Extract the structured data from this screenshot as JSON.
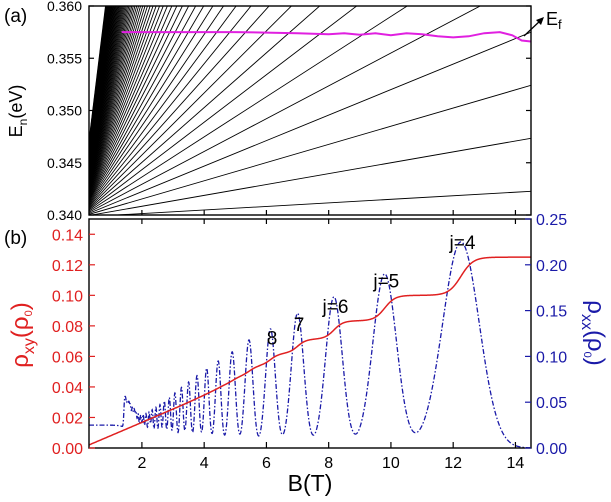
{
  "chart_data": [
    {
      "panel": "(a)",
      "type": "line",
      "ylabel_main": "E",
      "ylabel_sub": "n",
      "ylabel_unit": "(eV)",
      "xlim": [
        0.3,
        14.5
      ],
      "ylim": [
        0.34,
        0.36
      ],
      "yticks": [
        0.34,
        0.345,
        0.35,
        0.355,
        0.36
      ],
      "ytick_labels": [
        "0.340",
        "0.345",
        "0.350",
        "0.355",
        "0.360"
      ],
      "landau_levels": {
        "description": "fan of Landau levels E_n(B) = E0 + s*B",
        "color": "#000000",
        "E0": 0.3398,
        "slopes": [
          0.00017,
          0.00052,
          0.00087,
          0.00122,
          0.00157,
          0.00192,
          0.00227,
          0.00262,
          0.00297,
          0.00332,
          0.00367,
          0.00402,
          0.00437,
          0.00472,
          0.00507,
          0.00542,
          0.00577,
          0.00612,
          0.00647,
          0.00682,
          0.00717,
          0.00752,
          0.00787,
          0.00822,
          0.00857,
          0.00892,
          0.00927,
          0.00962,
          0.00997,
          0.01032,
          0.01067,
          0.01102,
          0.01137,
          0.01172,
          0.01207,
          0.01242,
          0.01277,
          0.01312,
          0.01347,
          0.01382,
          0.01417,
          0.01452,
          0.01487,
          0.01522,
          0.01557,
          0.01592,
          0.01627,
          0.01662,
          0.01697,
          0.01732,
          0.01767,
          0.01802,
          0.01837,
          0.01872,
          0.01907,
          0.01942,
          0.01977,
          0.02012,
          0.02047,
          0.02082,
          0.02117,
          0.02152,
          0.02187,
          0.02222,
          0.02257,
          0.02292,
          0.02327,
          0.02362,
          0.02397,
          0.02432
        ]
      },
      "fermi_level": {
        "label_main": "E",
        "label_sub": "f",
        "color": "#e020e0",
        "x": [
          1.35,
          2,
          3,
          4,
          5,
          6,
          7,
          7.5,
          8,
          8.5,
          9,
          9.5,
          10,
          10.5,
          11,
          11.5,
          12,
          12.5,
          13,
          13.5,
          13.9,
          14.2,
          14.5
        ],
        "y": [
          0.3575,
          0.3575,
          0.3575,
          0.3575,
          0.3575,
          0.35745,
          0.3574,
          0.35735,
          0.3573,
          0.3574,
          0.35725,
          0.3574,
          0.3572,
          0.3574,
          0.3573,
          0.3571,
          0.357,
          0.3571,
          0.3574,
          0.3575,
          0.3572,
          0.3567,
          0.3566
        ]
      }
    },
    {
      "panel": "(b)",
      "type": "line",
      "xlabel": "B(T)",
      "xlim": [
        0.3,
        14.5
      ],
      "xticks": [
        2,
        4,
        6,
        8,
        10,
        12,
        14
      ],
      "xtick_labels": [
        "2",
        "4",
        "6",
        "8",
        "10",
        "12",
        "14"
      ],
      "left_axis": {
        "label_main": "ρ",
        "label_sub": "xy",
        "label_tail": "(ρ",
        "label_tail_sub": "0",
        "label_close": ")",
        "color": "#e02020",
        "ylim": [
          0,
          0.15
        ],
        "yticks": [
          0,
          0.02,
          0.04,
          0.06,
          0.08,
          0.1,
          0.12,
          0.14
        ],
        "ytick_labels": [
          "0.00",
          "0.02",
          "0.04",
          "0.06",
          "0.08",
          "0.10",
          "0.12",
          "0.14"
        ]
      },
      "right_axis": {
        "label_main": "ρ",
        "label_sub": "xx",
        "label_tail": "(ρ",
        "label_tail_sub": "0",
        "label_close": ")",
        "color": "#1a1aa8",
        "ylim": [
          0,
          0.25
        ],
        "yticks": [
          0,
          0.05,
          0.1,
          0.15,
          0.2,
          0.25
        ],
        "ytick_labels": [
          "0.00",
          "0.05",
          "0.10",
          "0.15",
          "0.20",
          "0.25"
        ]
      },
      "rho_xy": {
        "description": "Hall resistivity with plateaus at 1/(2j)",
        "color": "#e02020",
        "plateaus": [
          {
            "j": 4,
            "value": 0.125,
            "center_B": 12.25,
            "label": "j=4"
          },
          {
            "j": 5,
            "value": 0.1,
            "center_B": 9.8,
            "label": "j=5"
          },
          {
            "j": 6,
            "value": 0.0833,
            "center_B": 8.17,
            "label": "j=6"
          },
          {
            "j": 7,
            "value": 0.0714,
            "center_B": 7.0,
            "label": "7"
          },
          {
            "j": 8,
            "value": 0.0625,
            "center_B": 6.13,
            "label": "8"
          }
        ],
        "low_field": {
          "x": [
            0.3,
            14.5
          ],
          "y": [
            0.002,
            0.125
          ]
        }
      },
      "rho_xx": {
        "description": "longitudinal resistivity peaks (dash-dot) at Landau level crossings",
        "color": "#1a1aa8",
        "peaks_B": [
          12.25,
          9.8,
          8.17,
          7.0,
          6.13,
          5.44,
          4.9,
          4.45,
          4.08,
          3.77,
          3.5,
          3.27,
          3.06,
          2.88,
          2.72,
          2.58,
          2.45,
          2.33,
          2.23,
          2.13,
          2.04,
          1.96,
          1.88,
          1.81,
          1.75,
          1.69,
          1.63,
          1.58,
          1.53,
          1.48,
          1.44
        ],
        "peaks_height": [
          0.225,
          0.19,
          0.165,
          0.147,
          0.13,
          0.118,
          0.105,
          0.095,
          0.087,
          0.079,
          0.072,
          0.066,
          0.06,
          0.055,
          0.051,
          0.047,
          0.044,
          0.041,
          0.038,
          0.036,
          0.034,
          0.032,
          0.031,
          0.03,
          0.029,
          0.028,
          0.027,
          0.027,
          0.026,
          0.026,
          0.025
        ],
        "baseline_low_field": 0.025
      }
    }
  ]
}
